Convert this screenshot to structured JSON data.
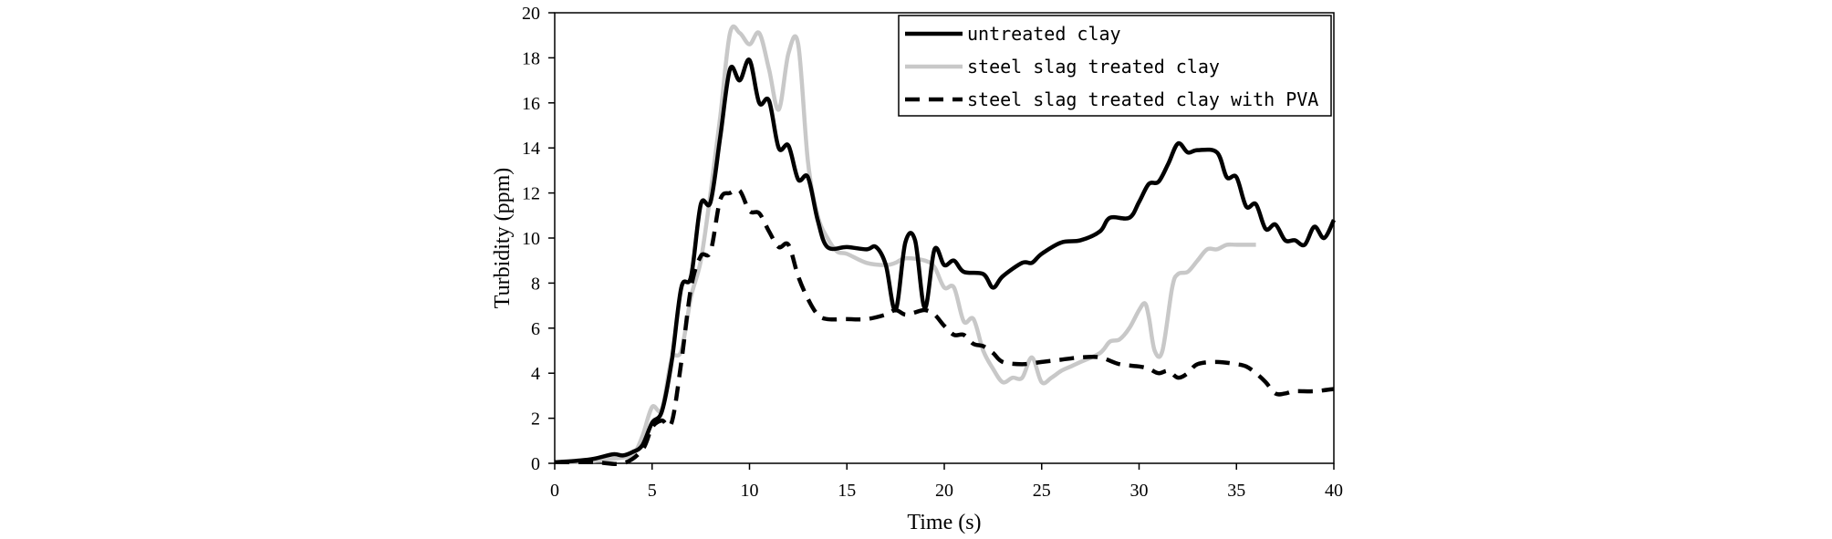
{
  "chart_data": {
    "type": "line",
    "xlabel": "Time (s)",
    "ylabel": "Turbidity (ppm)",
    "xlim": [
      0,
      40
    ],
    "ylim": [
      0,
      20
    ],
    "x_ticks": [
      "0",
      "5",
      "10",
      "15",
      "20",
      "25",
      "30",
      "35",
      "40"
    ],
    "y_ticks": [
      "0",
      "2",
      "4",
      "6",
      "8",
      "10",
      "12",
      "14",
      "16",
      "18",
      "20"
    ],
    "grid": false,
    "legend_position": "top-right",
    "series": [
      {
        "name": "untreated clay",
        "color": "#000000",
        "style": "solid",
        "points": [
          [
            0,
            0.05
          ],
          [
            1,
            0.1
          ],
          [
            2,
            0.2
          ],
          [
            3,
            0.4
          ],
          [
            3.5,
            0.35
          ],
          [
            4,
            0.5
          ],
          [
            4.5,
            0.8
          ],
          [
            5,
            1.8
          ],
          [
            5.5,
            2.3
          ],
          [
            6,
            4.5
          ],
          [
            6.5,
            7.8
          ],
          [
            7,
            8.3
          ],
          [
            7.5,
            11.5
          ],
          [
            8,
            11.6
          ],
          [
            8.5,
            14.5
          ],
          [
            9,
            17.5
          ],
          [
            9.5,
            17.0
          ],
          [
            10,
            17.9
          ],
          [
            10.5,
            16.0
          ],
          [
            11,
            16.1
          ],
          [
            11.5,
            14.0
          ],
          [
            12,
            14.1
          ],
          [
            12.5,
            12.6
          ],
          [
            13,
            12.7
          ],
          [
            13.5,
            10.8
          ],
          [
            14,
            9.6
          ],
          [
            15,
            9.6
          ],
          [
            16,
            9.5
          ],
          [
            16.5,
            9.6
          ],
          [
            17,
            8.8
          ],
          [
            17.5,
            6.8
          ],
          [
            18,
            9.8
          ],
          [
            18.5,
            9.9
          ],
          [
            19,
            6.9
          ],
          [
            19.5,
            9.5
          ],
          [
            20,
            8.8
          ],
          [
            20.5,
            9.0
          ],
          [
            21,
            8.5
          ],
          [
            22,
            8.4
          ],
          [
            22.5,
            7.8
          ],
          [
            23,
            8.3
          ],
          [
            24,
            8.9
          ],
          [
            24.5,
            8.9
          ],
          [
            25,
            9.3
          ],
          [
            26,
            9.8
          ],
          [
            27,
            9.9
          ],
          [
            28,
            10.3
          ],
          [
            28.5,
            10.9
          ],
          [
            29.5,
            10.9
          ],
          [
            30,
            11.6
          ],
          [
            30.5,
            12.4
          ],
          [
            31,
            12.5
          ],
          [
            31.5,
            13.3
          ],
          [
            32,
            14.2
          ],
          [
            32.5,
            13.8
          ],
          [
            33,
            13.9
          ],
          [
            34,
            13.8
          ],
          [
            34.5,
            12.7
          ],
          [
            35,
            12.7
          ],
          [
            35.5,
            11.4
          ],
          [
            36,
            11.5
          ],
          [
            36.5,
            10.4
          ],
          [
            37,
            10.6
          ],
          [
            37.5,
            9.9
          ],
          [
            38,
            9.9
          ],
          [
            38.5,
            9.7
          ],
          [
            39,
            10.5
          ],
          [
            39.5,
            10.0
          ],
          [
            40,
            10.8
          ]
        ]
      },
      {
        "name": "steel slag treated clay",
        "color": "#c8c8c8",
        "style": "solid",
        "points": [
          [
            0,
            0.05
          ],
          [
            1,
            0.05
          ],
          [
            2,
            0.1
          ],
          [
            3,
            0.2
          ],
          [
            4,
            0.4
          ],
          [
            4.5,
            1.2
          ],
          [
            5,
            2.5
          ],
          [
            5.5,
            2.4
          ],
          [
            6,
            4.6
          ],
          [
            6.5,
            5.0
          ],
          [
            7,
            7.4
          ],
          [
            7.5,
            9.0
          ],
          [
            8,
            12.0
          ],
          [
            8.5,
            15.4
          ],
          [
            9,
            19.1
          ],
          [
            9.5,
            19.1
          ],
          [
            10,
            18.6
          ],
          [
            10.5,
            19.1
          ],
          [
            11,
            17.5
          ],
          [
            11.5,
            15.7
          ],
          [
            12,
            18.2
          ],
          [
            12.5,
            18.6
          ],
          [
            13,
            13.4
          ],
          [
            13.5,
            11.0
          ],
          [
            14,
            10.0
          ],
          [
            14.5,
            9.4
          ],
          [
            15,
            9.3
          ],
          [
            16,
            8.9
          ],
          [
            17,
            8.8
          ],
          [
            17.5,
            8.9
          ],
          [
            18,
            9.1
          ],
          [
            19,
            9.0
          ],
          [
            19.5,
            8.7
          ],
          [
            20,
            7.8
          ],
          [
            20.5,
            7.8
          ],
          [
            21,
            6.3
          ],
          [
            21.5,
            6.4
          ],
          [
            22,
            5.0
          ],
          [
            22.5,
            4.2
          ],
          [
            23,
            3.6
          ],
          [
            23.5,
            3.8
          ],
          [
            24,
            3.8
          ],
          [
            24.5,
            4.7
          ],
          [
            25,
            3.6
          ],
          [
            25.5,
            3.8
          ],
          [
            26,
            4.1
          ],
          [
            26.5,
            4.3
          ],
          [
            27,
            4.5
          ],
          [
            28,
            4.9
          ],
          [
            28.5,
            5.4
          ],
          [
            29,
            5.5
          ],
          [
            29.5,
            6.0
          ],
          [
            30,
            6.8
          ],
          [
            30.3,
            7.1
          ],
          [
            30.5,
            6.5
          ],
          [
            30.8,
            5.0
          ],
          [
            31.2,
            5.0
          ],
          [
            31.7,
            7.8
          ],
          [
            32,
            8.4
          ],
          [
            32.5,
            8.5
          ],
          [
            33,
            9.0
          ],
          [
            33.5,
            9.5
          ],
          [
            34,
            9.5
          ],
          [
            34.5,
            9.7
          ],
          [
            35,
            9.7
          ],
          [
            36,
            9.7
          ]
        ]
      },
      {
        "name": "steel slag treated clay with PVA",
        "color": "#000000",
        "style": "dashed",
        "points": [
          [
            0,
            0.05
          ],
          [
            2,
            0.05
          ],
          [
            3.5,
            0.0
          ],
          [
            4.5,
            0.6
          ],
          [
            5,
            1.6
          ],
          [
            5.5,
            1.9
          ],
          [
            6,
            1.8
          ],
          [
            6.5,
            4.5
          ],
          [
            7,
            7.8
          ],
          [
            7.5,
            9.2
          ],
          [
            8,
            9.4
          ],
          [
            8.5,
            11.7
          ],
          [
            9,
            12.0
          ],
          [
            9.5,
            12.1
          ],
          [
            10,
            11.2
          ],
          [
            10.5,
            11.1
          ],
          [
            11,
            10.3
          ],
          [
            11.5,
            9.6
          ],
          [
            12,
            9.7
          ],
          [
            12.5,
            8.3
          ],
          [
            13,
            7.3
          ],
          [
            13.5,
            6.6
          ],
          [
            14,
            6.4
          ],
          [
            15,
            6.4
          ],
          [
            16,
            6.4
          ],
          [
            17,
            6.6
          ],
          [
            17.5,
            6.8
          ],
          [
            18,
            6.6
          ],
          [
            18.5,
            6.7
          ],
          [
            19,
            6.8
          ],
          [
            19.5,
            6.6
          ],
          [
            20,
            6.1
          ],
          [
            20.5,
            5.7
          ],
          [
            21,
            5.7
          ],
          [
            21.5,
            5.3
          ],
          [
            22,
            5.2
          ],
          [
            22.5,
            4.9
          ],
          [
            23,
            4.5
          ],
          [
            24,
            4.4
          ],
          [
            25,
            4.5
          ],
          [
            26,
            4.6
          ],
          [
            27,
            4.7
          ],
          [
            28,
            4.7
          ],
          [
            29,
            4.4
          ],
          [
            30,
            4.3
          ],
          [
            30.5,
            4.2
          ],
          [
            31,
            4.0
          ],
          [
            31.5,
            4.1
          ],
          [
            32,
            3.8
          ],
          [
            32.5,
            4.0
          ],
          [
            33,
            4.4
          ],
          [
            34,
            4.5
          ],
          [
            35,
            4.4
          ],
          [
            35.5,
            4.3
          ],
          [
            36,
            4.0
          ],
          [
            36.5,
            3.6
          ],
          [
            37,
            3.1
          ],
          [
            37.5,
            3.1
          ],
          [
            38,
            3.2
          ],
          [
            39,
            3.2
          ],
          [
            40,
            3.3
          ]
        ]
      }
    ]
  }
}
